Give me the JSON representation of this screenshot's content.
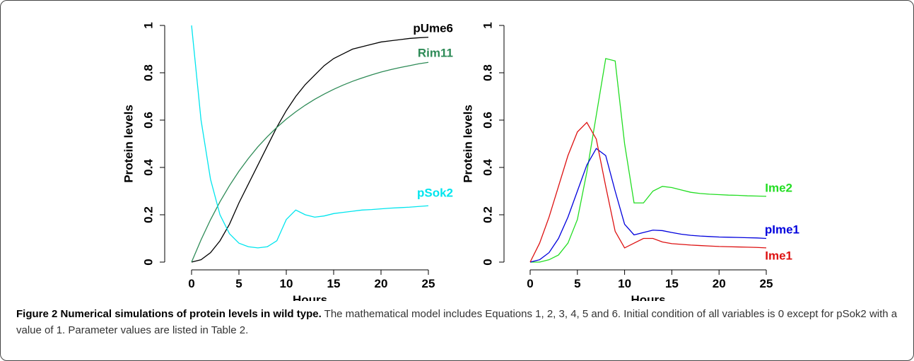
{
  "chart_data": [
    {
      "type": "line",
      "xlabel": "Hours",
      "ylabel": "Protein levels",
      "x": [
        0,
        1,
        2,
        3,
        4,
        5,
        6,
        7,
        8,
        9,
        10,
        11,
        12,
        13,
        14,
        15,
        16,
        17,
        18,
        19,
        20,
        21,
        22,
        23,
        24,
        25
      ],
      "xlim": [
        0,
        25
      ],
      "xticks": [
        0,
        5,
        10,
        15,
        20,
        25
      ],
      "ylim": [
        0,
        1
      ],
      "yticks": [
        0,
        0.2,
        0.4,
        0.6,
        0.8,
        1
      ],
      "series": [
        {
          "name": "pUme6",
          "color": "#000000",
          "values": [
            0,
            0.01,
            0.04,
            0.09,
            0.16,
            0.25,
            0.33,
            0.41,
            0.49,
            0.57,
            0.64,
            0.7,
            0.75,
            0.79,
            0.83,
            0.86,
            0.88,
            0.9,
            0.91,
            0.92,
            0.93,
            0.935,
            0.94,
            0.945,
            0.948,
            0.95
          ]
        },
        {
          "name": "Rim11",
          "color": "#2e8b57",
          "values": [
            0,
            0.094,
            0.179,
            0.255,
            0.323,
            0.384,
            0.438,
            0.487,
            0.53,
            0.569,
            0.604,
            0.635,
            0.663,
            0.688,
            0.71,
            0.73,
            0.748,
            0.764,
            0.778,
            0.791,
            0.803,
            0.813,
            0.822,
            0.83,
            0.838,
            0.844
          ]
        },
        {
          "name": "pSok2",
          "color": "#00e5ee",
          "values": [
            1,
            0.6,
            0.35,
            0.2,
            0.12,
            0.08,
            0.065,
            0.06,
            0.065,
            0.09,
            0.18,
            0.22,
            0.2,
            0.19,
            0.195,
            0.205,
            0.21,
            0.215,
            0.22,
            0.222,
            0.225,
            0.228,
            0.23,
            0.232,
            0.235,
            0.238
          ]
        }
      ]
    },
    {
      "type": "line",
      "xlabel": "Hours",
      "ylabel": "Protein levels",
      "x": [
        0,
        1,
        2,
        3,
        4,
        5,
        6,
        7,
        8,
        9,
        10,
        11,
        12,
        13,
        14,
        15,
        16,
        17,
        18,
        19,
        20,
        21,
        22,
        23,
        24,
        25
      ],
      "xlim": [
        0,
        25
      ],
      "xticks": [
        0,
        5,
        10,
        15,
        20,
        25
      ],
      "ylim": [
        0,
        1
      ],
      "yticks": [
        0,
        0.2,
        0.4,
        0.6,
        0.8,
        1
      ],
      "series": [
        {
          "name": "Ime2",
          "color": "#22dd22",
          "values": [
            0,
            0,
            0.01,
            0.03,
            0.08,
            0.18,
            0.38,
            0.62,
            0.86,
            0.85,
            0.5,
            0.25,
            0.25,
            0.3,
            0.32,
            0.315,
            0.305,
            0.295,
            0.29,
            0.287,
            0.285,
            0.283,
            0.282,
            0.28,
            0.279,
            0.278
          ]
        },
        {
          "name": "pIme1",
          "color": "#0000dd",
          "values": [
            0,
            0.01,
            0.04,
            0.1,
            0.19,
            0.3,
            0.41,
            0.48,
            0.45,
            0.3,
            0.16,
            0.115,
            0.125,
            0.135,
            0.133,
            0.125,
            0.118,
            0.113,
            0.11,
            0.108,
            0.106,
            0.105,
            0.104,
            0.103,
            0.102,
            0.1
          ]
        },
        {
          "name": "Ime1",
          "color": "#dd1111",
          "values": [
            0,
            0.08,
            0.19,
            0.32,
            0.45,
            0.55,
            0.59,
            0.52,
            0.32,
            0.13,
            0.06,
            0.08,
            0.1,
            0.1,
            0.085,
            0.078,
            0.075,
            0.072,
            0.07,
            0.068,
            0.066,
            0.065,
            0.064,
            0.063,
            0.062,
            0.06
          ]
        }
      ]
    }
  ],
  "caption": {
    "title": "Figure 2 Numerical simulations of protein levels in wild type.",
    "text": "The mathematical model includes Equations 1, 2, 3, 4, 5 and 6. Initial condition of all variables is 0 except for pSok2 with a value of 1. Parameter values are listed in Table 2."
  }
}
